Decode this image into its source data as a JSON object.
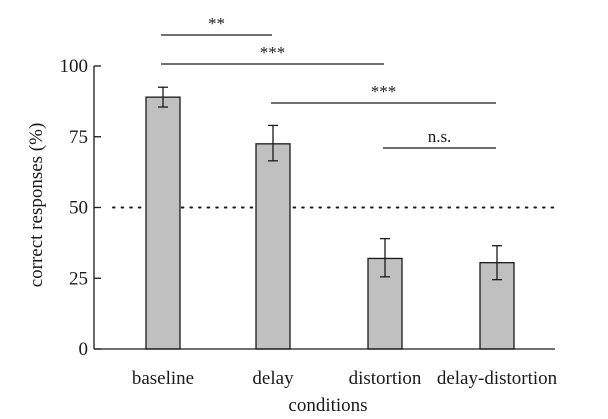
{
  "chart_data": {
    "type": "bar",
    "xlabel": "conditions",
    "ylabel": "correct responses (%)",
    "categories": [
      "baseline",
      "delay",
      "distortion",
      "delay-distortion"
    ],
    "values": [
      89,
      72.5,
      32,
      30.5
    ],
    "error_low": [
      85.5,
      66.5,
      25.5,
      24.5
    ],
    "error_high": [
      92.5,
      79,
      39,
      36.5
    ],
    "ylim": [
      0,
      100
    ],
    "yticks": [
      0,
      25,
      50,
      75,
      100
    ],
    "ytick_labels": [
      "0",
      "25",
      "50",
      "75",
      "100"
    ],
    "reference_line": {
      "y": 50,
      "style": "dotted"
    },
    "significance": [
      {
        "from": "baseline",
        "to": "delay",
        "label": "**"
      },
      {
        "from": "baseline",
        "to": "distortion",
        "label": "***"
      },
      {
        "from": "delay",
        "to": "delay-distortion",
        "label": "***"
      },
      {
        "from": "distortion",
        "to": "delay-distortion",
        "label": "n.s."
      }
    ],
    "bar_color": "#c0c0c0",
    "bar_edge_color": "#1a1a1a",
    "grid": false,
    "legend": "none"
  }
}
